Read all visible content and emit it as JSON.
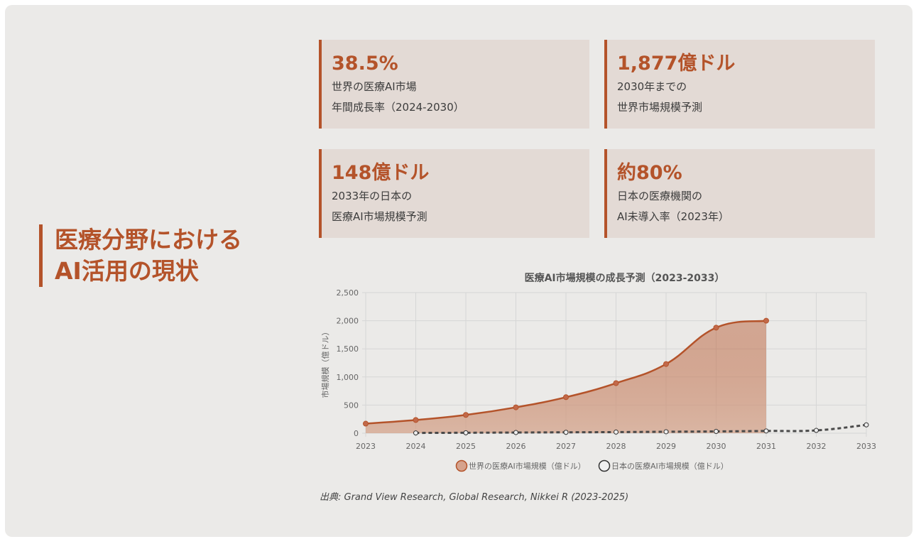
{
  "heading": {
    "line1": "医療分野における",
    "line2": "AI活用の現状"
  },
  "cards": [
    {
      "value": "38.5%",
      "line1": "世界の医療AI市場",
      "line2": "年間成長率（2024-2030）"
    },
    {
      "value": "1,877億ドル",
      "line1": "2030年までの",
      "line2": "世界市場規模予測"
    },
    {
      "value": "148億ドル",
      "line1": "2033年の日本の",
      "line2": "医療AI市場規模予測"
    },
    {
      "value": "約80%",
      "line1": "日本の医療機関の",
      "line2": "AI未導入率（2023年）"
    }
  ],
  "colors": {
    "accent": "#b4532a",
    "fill": "#d4a48c",
    "japan_line": "#4a4a4a"
  },
  "chart_data": {
    "type": "line",
    "title": "医療AI市場規模の成長予測（2023-2033）",
    "xlabel": "",
    "ylabel": "市場規模（億ドル）",
    "x": [
      "2023",
      "2024",
      "2025",
      "2026",
      "2027",
      "2028",
      "2029",
      "2030",
      "2031",
      "2032",
      "2033"
    ],
    "ylim": [
      0,
      2500
    ],
    "yticks": [
      "0",
      "500",
      "1,000",
      "1,500",
      "2,000",
      "2,500"
    ],
    "grid": true,
    "legend_position": "bottom",
    "series": [
      {
        "name": "世界の医療AI市場規模（億ドル）",
        "values": [
          170,
          235,
          325,
          460,
          640,
          890,
          1230,
          1877,
          2000,
          null,
          null
        ],
        "style": "solid-filled"
      },
      {
        "name": "日本の医療AI市場規模（億ドル）",
        "values": [
          null,
          5,
          8,
          12,
          16,
          20,
          26,
          32,
          40,
          50,
          148
        ],
        "style": "dashed"
      }
    ]
  },
  "source": "出典: Grand View Research, Global Research, Nikkei R (2023-2025)"
}
